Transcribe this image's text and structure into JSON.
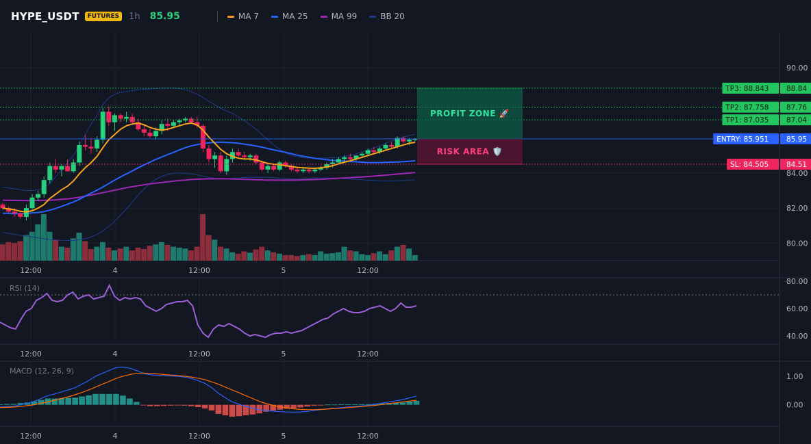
{
  "header": {
    "symbol": "HYPE_USDT",
    "badge": "FUTURES",
    "timeframe": "1h",
    "last_price": "85.95",
    "indicators": [
      {
        "name": "MA 7",
        "color": "#f7931a"
      },
      {
        "name": "MA 25",
        "color": "#2962ff"
      },
      {
        "name": "MA 99",
        "color": "#9c27b0"
      },
      {
        "name": "BB 20",
        "color": "#1e3a8a"
      }
    ]
  },
  "colors": {
    "up": "#26d07c",
    "down": "#f0245f",
    "vol_up": "#1f7a6e",
    "vol_down": "#8b2d3c",
    "ma7": "#f7a51a",
    "ma25": "#2962ff",
    "ma99": "#9c27b0",
    "bb": "#1e3a8a",
    "tp": "#22c55e",
    "entry": "#2962ff",
    "sl": "#f0245f"
  },
  "chart_data": [
    {
      "type": "candlestick",
      "price_axis": {
        "ticks": [
          "90.00",
          "84.00",
          "82.00",
          "80.00"
        ],
        "range": [
          79.0,
          92.0
        ]
      },
      "time_axis": [
        "12:00",
        "4",
        "12:00",
        "5",
        "12:00"
      ],
      "levels": {
        "tp3": {
          "label": "TP3: 88.843",
          "axis": "88.84",
          "value": 88.843
        },
        "tp2": {
          "label": "TP2: 87.758",
          "axis": "87.76",
          "value": 87.758
        },
        "tp1": {
          "label": "TP1: 87.035",
          "axis": "87.04",
          "value": 87.035
        },
        "entry": {
          "label": "ENTRY: 85.951",
          "axis": "85.95",
          "value": 85.951
        },
        "sl": {
          "label": "SL: 84.505",
          "axis": "84.51",
          "value": 84.505
        }
      },
      "zones": {
        "profit": "PROFIT ZONE 🚀",
        "risk": "RISK AREA 🛡️"
      },
      "ohlc": [
        [
          82.2,
          82.3,
          81.9,
          82.0
        ],
        [
          82.0,
          82.1,
          81.7,
          81.8
        ],
        [
          81.8,
          82.0,
          81.5,
          81.7
        ],
        [
          81.7,
          81.8,
          81.4,
          81.5
        ],
        [
          81.5,
          82.2,
          81.3,
          82.0
        ],
        [
          82.0,
          82.8,
          81.9,
          82.6
        ],
        [
          82.6,
          83.0,
          82.4,
          82.8
        ],
        [
          82.8,
          83.8,
          82.6,
          83.6
        ],
        [
          83.6,
          84.6,
          83.4,
          84.4
        ],
        [
          84.4,
          84.8,
          84.0,
          84.2
        ],
        [
          84.2,
          84.5,
          83.8,
          84.4
        ],
        [
          84.4,
          84.8,
          84.1,
          84.1
        ],
        [
          84.1,
          84.8,
          84.0,
          84.6
        ],
        [
          84.6,
          85.8,
          84.4,
          85.6
        ],
        [
          85.6,
          86.2,
          85.3,
          85.5
        ],
        [
          85.5,
          86.0,
          85.1,
          85.4
        ],
        [
          85.4,
          86.1,
          85.2,
          85.9
        ],
        [
          85.9,
          87.7,
          85.7,
          87.5
        ],
        [
          87.5,
          87.8,
          86.7,
          86.9
        ],
        [
          86.9,
          87.4,
          86.4,
          87.3
        ],
        [
          87.3,
          87.4,
          86.9,
          87.1
        ],
        [
          87.1,
          87.5,
          86.9,
          87.2
        ],
        [
          87.2,
          87.4,
          86.8,
          86.9
        ],
        [
          86.9,
          87.1,
          86.4,
          86.5
        ],
        [
          86.5,
          86.7,
          86.1,
          86.3
        ],
        [
          86.3,
          86.5,
          86.0,
          86.1
        ],
        [
          86.1,
          86.6,
          85.9,
          86.4
        ],
        [
          86.4,
          87.0,
          86.2,
          86.8
        ],
        [
          86.8,
          87.1,
          86.4,
          86.7
        ],
        [
          86.7,
          87.0,
          86.6,
          86.9
        ],
        [
          86.9,
          87.1,
          86.7,
          87.0
        ],
        [
          87.0,
          87.2,
          86.9,
          87.1
        ],
        [
          87.1,
          87.2,
          86.8,
          86.9
        ],
        [
          86.9,
          87.2,
          86.6,
          86.7
        ],
        [
          86.7,
          86.8,
          85.2,
          85.4
        ],
        [
          85.4,
          85.6,
          84.6,
          84.8
        ],
        [
          84.8,
          85.2,
          84.3,
          85.0
        ],
        [
          85.0,
          85.2,
          84.0,
          84.1
        ],
        [
          84.1,
          85.0,
          83.9,
          84.8
        ],
        [
          84.8,
          85.4,
          84.6,
          85.2
        ],
        [
          85.2,
          85.4,
          84.9,
          85.0
        ],
        [
          85.0,
          85.2,
          84.8,
          84.9
        ],
        [
          84.9,
          85.1,
          84.7,
          85.0
        ],
        [
          85.0,
          85.1,
          84.5,
          84.6
        ],
        [
          84.6,
          84.7,
          84.1,
          84.2
        ],
        [
          84.2,
          84.5,
          84.0,
          84.4
        ],
        [
          84.4,
          84.5,
          84.1,
          84.2
        ],
        [
          84.2,
          84.7,
          84.1,
          84.6
        ],
        [
          84.6,
          84.7,
          84.3,
          84.4
        ],
        [
          84.4,
          84.5,
          84.1,
          84.2
        ],
        [
          84.2,
          84.3,
          84.0,
          84.1
        ],
        [
          84.1,
          84.3,
          84.0,
          84.2
        ],
        [
          84.2,
          84.3,
          84.0,
          84.1
        ],
        [
          84.1,
          84.3,
          84.0,
          84.2
        ],
        [
          84.2,
          84.4,
          84.1,
          84.3
        ],
        [
          84.3,
          84.6,
          84.2,
          84.5
        ],
        [
          84.5,
          84.8,
          84.3,
          84.6
        ],
        [
          84.6,
          84.9,
          84.5,
          84.8
        ],
        [
          84.8,
          85.0,
          84.6,
          84.9
        ],
        [
          84.9,
          85.1,
          84.7,
          84.8
        ],
        [
          84.8,
          85.0,
          84.7,
          85.0
        ],
        [
          85.0,
          85.2,
          84.9,
          85.1
        ],
        [
          85.1,
          85.4,
          85.0,
          85.3
        ],
        [
          85.3,
          85.5,
          85.1,
          85.2
        ],
        [
          85.2,
          85.5,
          85.1,
          85.4
        ],
        [
          85.4,
          85.7,
          85.3,
          85.6
        ],
        [
          85.6,
          85.8,
          85.4,
          85.5
        ],
        [
          85.5,
          86.1,
          85.4,
          86.0
        ],
        [
          86.0,
          86.1,
          85.7,
          85.8
        ],
        [
          85.8,
          86.0,
          85.6,
          85.9
        ],
        [
          85.9,
          86.0,
          85.8,
          85.95
        ]
      ],
      "ma7": [
        82.0,
        81.95,
        81.9,
        81.82,
        81.78,
        81.85,
        82.0,
        82.2,
        82.55,
        82.8,
        83.05,
        83.25,
        83.55,
        83.95,
        84.3,
        84.6,
        84.95,
        85.45,
        85.9,
        86.2,
        86.5,
        86.7,
        86.8,
        86.85,
        86.75,
        86.6,
        86.5,
        86.45,
        86.5,
        86.6,
        86.7,
        86.8,
        86.85,
        86.75,
        86.45,
        86.05,
        85.7,
        85.35,
        85.1,
        84.95,
        84.85,
        84.8,
        84.8,
        84.75,
        84.65,
        84.55,
        84.5,
        84.48,
        84.42,
        84.38,
        84.32,
        84.3,
        84.28,
        84.27,
        84.3,
        84.35,
        84.42,
        84.52,
        84.62,
        84.7,
        84.8,
        84.9,
        85.0,
        85.1,
        85.2,
        85.3,
        85.4,
        85.5,
        85.6,
        85.7,
        85.75
      ],
      "ma25": [
        81.7,
        81.7,
        81.68,
        81.68,
        81.7,
        81.72,
        81.75,
        81.8,
        81.88,
        81.98,
        82.1,
        82.22,
        82.35,
        82.5,
        82.68,
        82.85,
        83.02,
        83.2,
        83.4,
        83.6,
        83.78,
        83.95,
        84.12,
        84.3,
        84.46,
        84.62,
        84.78,
        84.92,
        85.05,
        85.18,
        85.32,
        85.45,
        85.55,
        85.62,
        85.68,
        85.72,
        85.75,
        85.76,
        85.75,
        85.73,
        85.7,
        85.65,
        85.6,
        85.54,
        85.48,
        85.4,
        85.32,
        85.25,
        85.18,
        85.1,
        85.02,
        84.96,
        84.9,
        84.84,
        84.8,
        84.76,
        84.72,
        84.7,
        84.68,
        84.66,
        84.64,
        84.62,
        84.6,
        84.6,
        84.6,
        84.61,
        84.62,
        84.63,
        84.65,
        84.67,
        84.7
      ],
      "ma99": [
        82.45,
        82.44,
        82.44,
        82.43,
        82.43,
        82.43,
        82.43,
        82.44,
        82.45,
        82.47,
        82.5,
        82.53,
        82.57,
        82.62,
        82.68,
        82.74,
        82.81,
        82.88,
        82.95,
        83.02,
        83.09,
        83.16,
        83.22,
        83.28,
        83.33,
        83.38,
        83.42,
        83.46,
        83.5,
        83.54,
        83.57,
        83.6,
        83.63,
        83.65,
        83.66,
        83.67,
        83.67,
        83.67,
        83.67,
        83.66,
        83.65,
        83.64,
        83.63,
        83.62,
        83.61,
        83.6,
        83.6,
        83.6,
        83.6,
        83.6,
        83.6,
        83.61,
        83.62,
        83.63,
        83.64,
        83.66,
        83.68,
        83.7,
        83.72,
        83.74,
        83.76,
        83.78,
        83.8,
        83.82,
        83.85,
        83.88,
        83.91,
        83.94,
        83.97,
        84.0,
        84.03
      ],
      "bb_upper": [
        83.2,
        83.15,
        83.1,
        83.05,
        83.0,
        83.0,
        83.05,
        83.15,
        83.4,
        83.8,
        84.2,
        84.6,
        85.0,
        85.6,
        86.2,
        86.8,
        87.3,
        87.9,
        88.3,
        88.5,
        88.6,
        88.65,
        88.7,
        88.75,
        88.78,
        88.8,
        88.82,
        88.85,
        88.85,
        88.85,
        88.82,
        88.75,
        88.65,
        88.5,
        88.3,
        88.1,
        87.9,
        87.7,
        87.55,
        87.4,
        87.2,
        87.0,
        86.75,
        86.5,
        86.2,
        85.9,
        85.6,
        85.35,
        85.15,
        85.0,
        84.92,
        84.88,
        84.86,
        84.85,
        84.85,
        84.86,
        84.88,
        84.9,
        84.95,
        85.0,
        85.1,
        85.2,
        85.3,
        85.42,
        85.55,
        85.7,
        85.82,
        85.95,
        86.05,
        86.15,
        86.2
      ],
      "bb_lower": [
        80.6,
        80.55,
        80.5,
        80.45,
        80.4,
        80.35,
        80.3,
        80.25,
        80.2,
        80.18,
        80.16,
        80.15,
        80.15,
        80.2,
        80.25,
        80.35,
        80.5,
        80.7,
        80.95,
        81.25,
        81.6,
        81.95,
        82.35,
        82.75,
        83.1,
        83.4,
        83.65,
        83.82,
        83.92,
        83.98,
        84.0,
        83.98,
        83.95,
        83.9,
        83.82,
        83.75,
        83.7,
        83.68,
        83.68,
        83.7,
        83.72,
        83.74,
        83.75,
        83.76,
        83.76,
        83.75,
        83.73,
        83.7,
        83.68,
        83.66,
        83.66,
        83.68,
        83.7,
        83.72,
        83.72,
        83.72,
        83.72,
        83.7,
        83.68,
        83.66,
        83.64,
        83.62,
        83.6,
        83.58,
        83.56,
        83.55,
        83.55,
        83.56,
        83.58,
        83.6,
        83.62
      ],
      "volume": [
        0.35,
        0.4,
        0.38,
        0.42,
        0.55,
        0.62,
        0.78,
        1.0,
        0.62,
        0.45,
        0.3,
        0.28,
        0.48,
        0.6,
        0.42,
        0.25,
        0.3,
        0.4,
        0.28,
        0.22,
        0.26,
        0.3,
        0.22,
        0.28,
        0.25,
        0.32,
        0.35,
        0.4,
        0.34,
        0.3,
        0.28,
        0.26,
        0.22,
        0.3,
        1.0,
        0.55,
        0.45,
        0.3,
        0.26,
        0.18,
        0.15,
        0.2,
        0.17,
        0.24,
        0.3,
        0.22,
        0.18,
        0.15,
        0.12,
        0.12,
        0.1,
        0.12,
        0.14,
        0.12,
        0.2,
        0.15,
        0.16,
        0.18,
        0.3,
        0.22,
        0.2,
        0.14,
        0.12,
        0.16,
        0.2,
        0.14,
        0.22,
        0.3,
        0.34,
        0.26,
        0.12
      ]
    },
    {
      "type": "line",
      "label": "RSI (14)",
      "y_ticks": [
        "80.00",
        "60.00",
        "40.00"
      ],
      "ylim": [
        34,
        82
      ],
      "levels": [
        70
      ],
      "values": [
        50,
        48,
        46,
        45,
        52,
        58,
        60,
        66,
        68,
        71,
        66,
        65,
        66,
        70,
        72,
        67,
        69,
        70,
        67,
        68,
        69,
        77,
        69,
        66,
        68,
        67,
        68,
        67,
        62,
        60,
        58,
        60,
        63,
        64,
        65,
        65,
        66,
        62,
        48,
        42,
        39,
        45,
        48,
        47,
        49,
        47,
        45,
        42,
        40,
        41,
        40,
        39,
        41,
        42,
        42,
        43,
        42,
        43,
        44,
        46,
        48,
        50,
        52,
        53,
        56,
        58,
        60,
        58,
        57,
        57,
        58,
        60,
        61,
        62,
        60,
        58,
        60,
        64,
        61,
        61,
        62
      ]
    },
    {
      "type": "macd",
      "label": "MACD (12, 26, 9)",
      "y_ticks": [
        "1.00",
        "0.00"
      ],
      "ylim": [
        -0.75,
        1.5
      ],
      "macd": [
        -0.08,
        -0.06,
        -0.05,
        0.0,
        0.05,
        0.12,
        0.22,
        0.32,
        0.38,
        0.45,
        0.52,
        0.6,
        0.72,
        0.85,
        1.0,
        1.1,
        1.2,
        1.3,
        1.32,
        1.28,
        1.2,
        1.1,
        1.05,
        1.03,
        1.02,
        1.01,
        1.0,
        0.97,
        0.92,
        0.85,
        0.75,
        0.6,
        0.4,
        0.25,
        0.1,
        0.02,
        -0.05,
        -0.12,
        -0.18,
        -0.2,
        -0.22,
        -0.24,
        -0.25,
        -0.26,
        -0.25,
        -0.23,
        -0.2,
        -0.17,
        -0.14,
        -0.12,
        -0.1,
        -0.08,
        -0.06,
        -0.04,
        -0.02,
        0.02,
        0.06,
        0.1,
        0.14,
        0.18,
        0.24,
        0.3
      ],
      "signal": [
        -0.1,
        -0.09,
        -0.08,
        -0.06,
        -0.03,
        0.0,
        0.05,
        0.1,
        0.16,
        0.22,
        0.28,
        0.35,
        0.43,
        0.52,
        0.62,
        0.72,
        0.82,
        0.92,
        1.0,
        1.06,
        1.1,
        1.11,
        1.1,
        1.08,
        1.06,
        1.04,
        1.02,
        1.0,
        0.97,
        0.93,
        0.88,
        0.8,
        0.72,
        0.62,
        0.52,
        0.42,
        0.32,
        0.22,
        0.12,
        0.04,
        -0.02,
        -0.07,
        -0.11,
        -0.14,
        -0.16,
        -0.17,
        -0.17,
        -0.16,
        -0.15,
        -0.13,
        -0.12,
        -0.1,
        -0.08,
        -0.06,
        -0.04,
        -0.02,
        0.01,
        0.04,
        0.07,
        0.1,
        0.13,
        0.16
      ],
      "hist": [
        0.02,
        0.03,
        0.03,
        0.06,
        0.08,
        0.12,
        0.17,
        0.22,
        0.22,
        0.23,
        0.24,
        0.25,
        0.29,
        0.33,
        0.38,
        0.38,
        0.38,
        0.38,
        0.32,
        0.22,
        0.1,
        -0.01,
        -0.05,
        -0.05,
        -0.04,
        -0.03,
        -0.02,
        -0.03,
        -0.05,
        -0.08,
        -0.13,
        -0.2,
        -0.32,
        -0.37,
        -0.42,
        -0.4,
        -0.37,
        -0.34,
        -0.3,
        -0.24,
        -0.2,
        -0.17,
        -0.14,
        -0.12,
        -0.09,
        -0.06,
        -0.03,
        -0.01,
        0.01,
        0.01,
        0.02,
        0.02,
        0.02,
        0.02,
        0.02,
        0.04,
        0.05,
        0.06,
        0.07,
        0.08,
        0.11,
        0.14
      ]
    }
  ]
}
